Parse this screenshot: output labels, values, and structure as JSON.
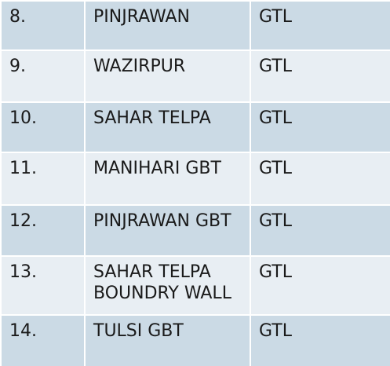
{
  "table": {
    "rows": [
      [
        "8.",
        "PINJRAWAN",
        "GTL"
      ],
      [
        "9.",
        "WAZIRPUR",
        "GTL"
      ],
      [
        "10.",
        "SAHAR TELPA",
        "GTL"
      ],
      [
        "11.",
        "MANIHARI GBT",
        "GTL"
      ],
      [
        "12.",
        "PINJRAWAN GBT",
        "GTL"
      ],
      [
        "13.",
        [
          "SAHAR TELPA",
          "BOUNDRY WALL"
        ],
        "GTL"
      ],
      [
        "14.",
        "TULSI GBT",
        "GTL"
      ]
    ]
  }
}
